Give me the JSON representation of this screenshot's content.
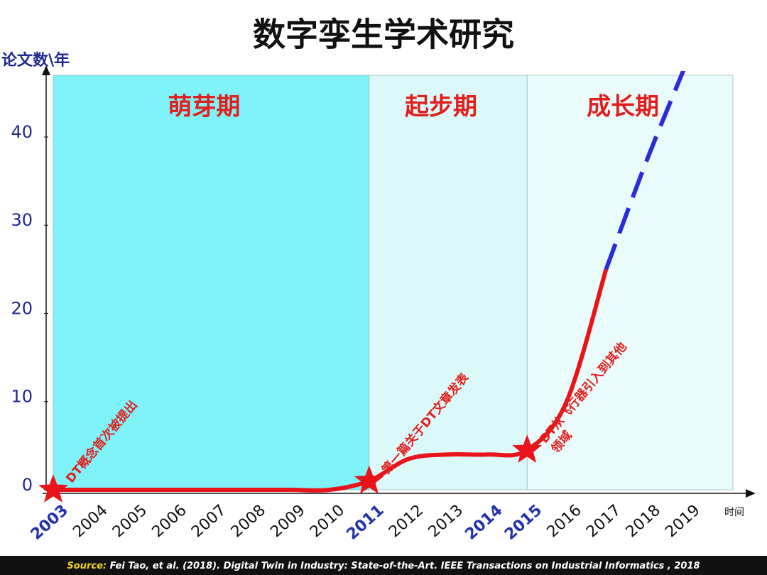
{
  "title": "数字孪生学术研究",
  "chart_data": {
    "type": "line",
    "y_label": "论文数\\年",
    "x_label": "时间",
    "categories": [
      "2003",
      "2004",
      "2005",
      "2006",
      "2007",
      "2008",
      "2009",
      "2010",
      "2011",
      "2012",
      "2013",
      "2014",
      "2015",
      "2016",
      "2017",
      "2018",
      "2019"
    ],
    "series": [
      {
        "color": "#e8141a",
        "style": "solid",
        "values": [
          0,
          0,
          0,
          0,
          0,
          0,
          0,
          0,
          1,
          3.5,
          4,
          4,
          4.5,
          10,
          25,
          null,
          null
        ]
      },
      {
        "color": "#2b2bd8",
        "style": "dashed",
        "values": [
          null,
          null,
          null,
          null,
          null,
          null,
          null,
          null,
          null,
          null,
          null,
          null,
          null,
          null,
          25,
          37,
          48
        ]
      }
    ],
    "ylim": [
      0,
      47
    ],
    "yticks": [
      0,
      10,
      20,
      30,
      40
    ],
    "phases": [
      {
        "label": "萌芽期",
        "from": "2003",
        "color": "#7ff3f7"
      },
      {
        "label": "起步期",
        "from": "2011",
        "color": "#dcf9fa"
      },
      {
        "label": "成长期",
        "from": "2015",
        "color": "#eafbfc"
      }
    ],
    "milestones": [
      {
        "x": "2003",
        "text": [
          "DT概念首次被提出"
        ]
      },
      {
        "x": "2011",
        "text": [
          "第一篇关于DT文章发表"
        ]
      },
      {
        "x": "2015",
        "text": [
          "DT从飞行器引入到其他",
          "领域"
        ]
      }
    ],
    "highlight_years": [
      "2003",
      "2011",
      "2014",
      "2015"
    ]
  },
  "source": {
    "label": "Source:",
    "text": " Fei Tao, et al. (2018). Digital Twin in Industry: State-of-the-Art. IEEE Transactions on Industrial Informatics , 2018"
  }
}
